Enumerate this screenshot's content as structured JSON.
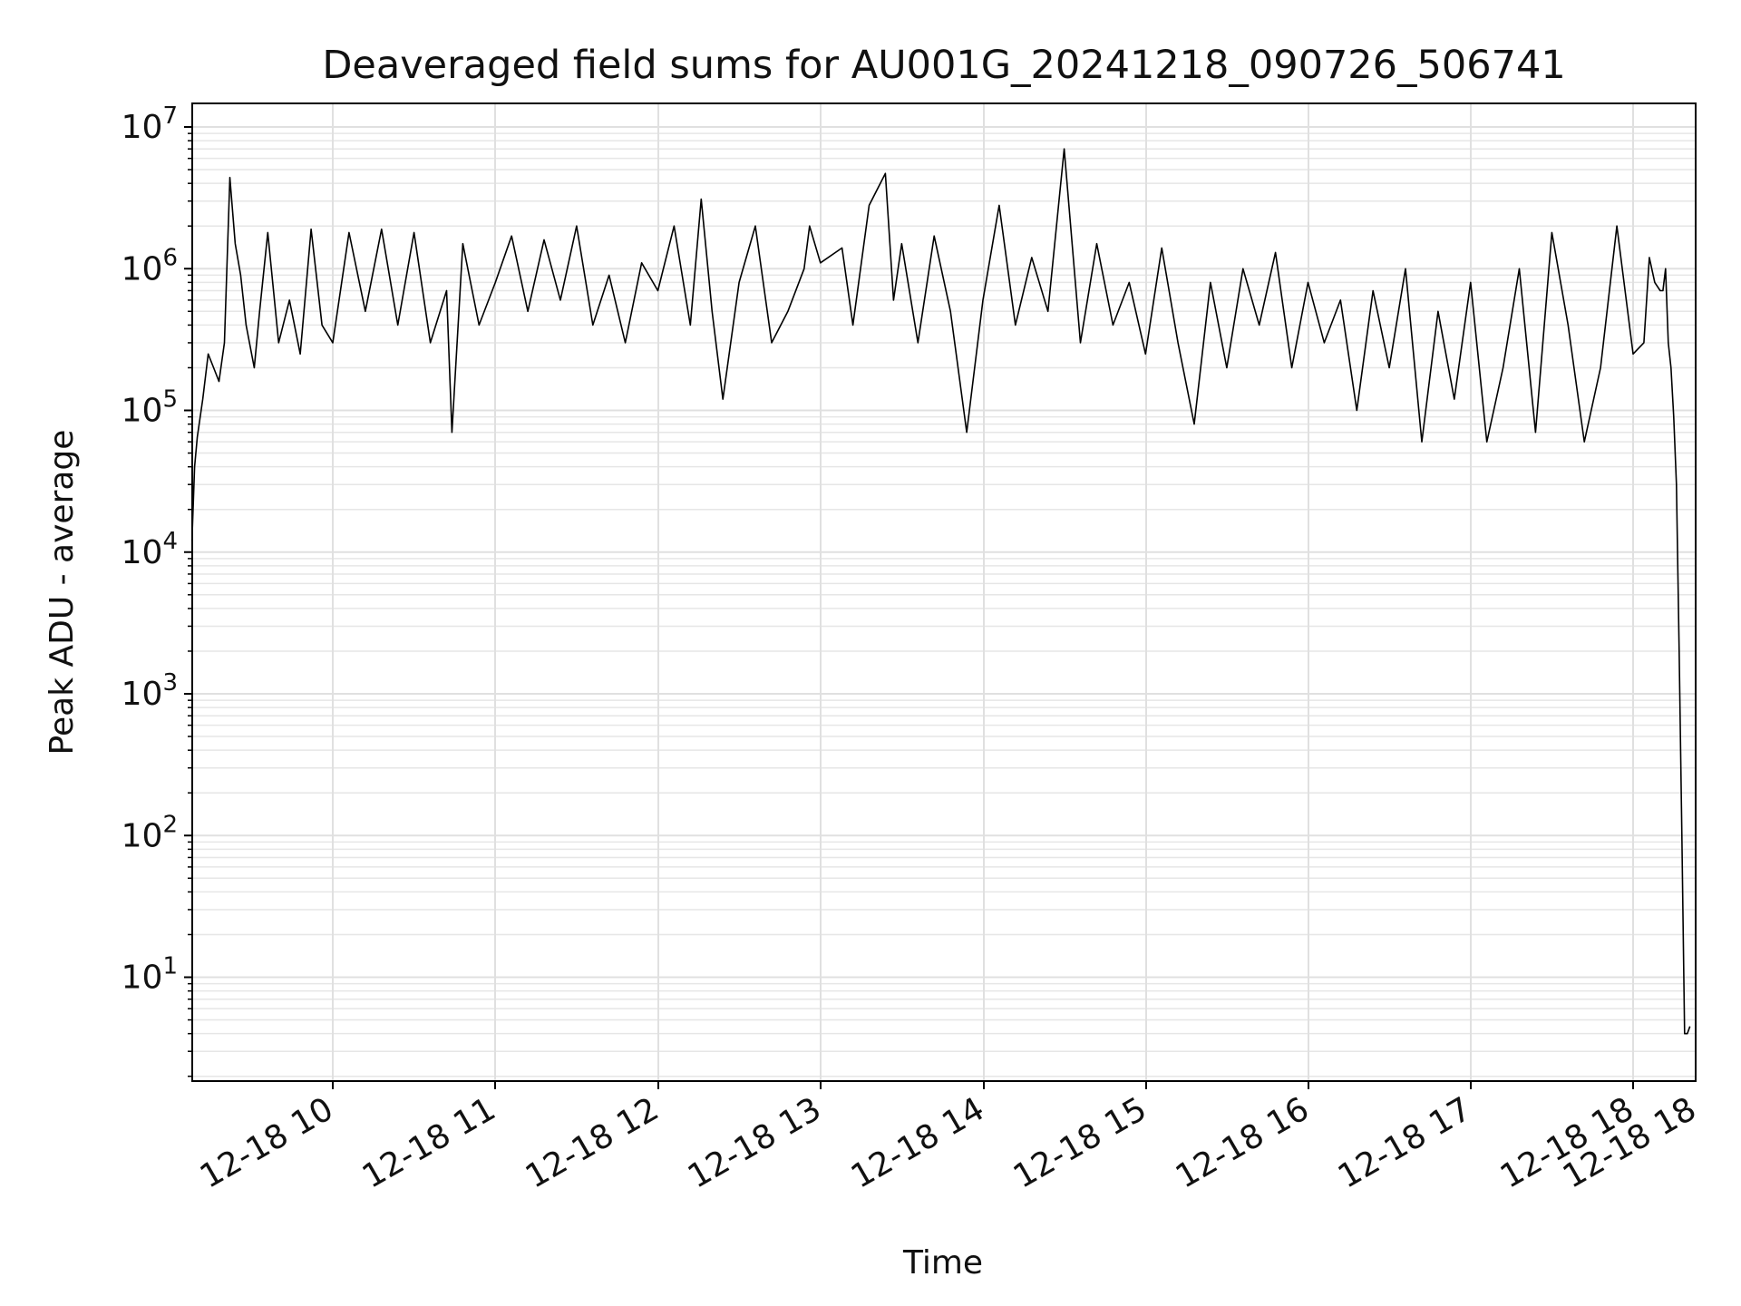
{
  "chart_data": {
    "type": "line",
    "title": "Deaveraged field sums for AU001G_20241218_090726_506741",
    "xlabel": "Time",
    "ylabel": "Peak ADU - average",
    "yscale": "log",
    "grid": true,
    "xlim": [
      "12-18 09:08",
      "12-18 18:21"
    ],
    "ylim": [
      1.8,
      14000000
    ],
    "x_ticks": [
      "12-18 10",
      "12-18 11",
      "12-18 12",
      "12-18 13",
      "12-18 14",
      "12-18 15",
      "12-18 16",
      "12-18 17",
      "12-18 18",
      "12-18 18"
    ],
    "y_ticks": [
      {
        "value": 10,
        "base": "10",
        "exp": "1"
      },
      {
        "value": 100,
        "base": "10",
        "exp": "2"
      },
      {
        "value": 1000,
        "base": "10",
        "exp": "3"
      },
      {
        "value": 10000,
        "base": "10",
        "exp": "4"
      },
      {
        "value": 100000,
        "base": "10",
        "exp": "5"
      },
      {
        "value": 1000000,
        "base": "10",
        "exp": "6"
      },
      {
        "value": 10000000,
        "base": "10",
        "exp": "7"
      }
    ],
    "series": [
      {
        "color": "#000000",
        "x": [
          "12-18 09:08",
          "12-18 09:09",
          "12-18 09:10",
          "12-18 09:12",
          "12-18 09:14",
          "12-18 09:16",
          "12-18 09:18",
          "12-18 09:20",
          "12-18 09:22",
          "12-18 09:24",
          "12-18 09:26",
          "12-18 09:28",
          "12-18 09:31",
          "12-18 09:33",
          "12-18 09:36",
          "12-18 09:40",
          "12-18 09:44",
          "12-18 09:48",
          "12-18 09:52",
          "12-18 09:56",
          "12-18 10:00",
          "12-18 10:06",
          "12-18 10:12",
          "12-18 10:18",
          "12-18 10:24",
          "12-18 10:30",
          "12-18 10:36",
          "12-18 10:42",
          "12-18 10:44",
          "12-18 10:48",
          "12-18 10:54",
          "12-18 11:00",
          "12-18 11:06",
          "12-18 11:12",
          "12-18 11:18",
          "12-18 11:24",
          "12-18 11:30",
          "12-18 11:36",
          "12-18 11:42",
          "12-18 11:48",
          "12-18 11:54",
          "12-18 12:00",
          "12-18 12:06",
          "12-18 12:12",
          "12-18 12:16",
          "12-18 12:20",
          "12-18 12:24",
          "12-18 12:30",
          "12-18 12:36",
          "12-18 12:42",
          "12-18 12:48",
          "12-18 12:54",
          "12-18 12:56",
          "12-18 13:00",
          "12-18 13:08",
          "12-18 13:12",
          "12-18 13:18",
          "12-18 13:24",
          "12-18 13:27",
          "12-18 13:30",
          "12-18 13:36",
          "12-18 13:42",
          "12-18 13:48",
          "12-18 13:54",
          "12-18 14:00",
          "12-18 14:06",
          "12-18 14:12",
          "12-18 14:18",
          "12-18 14:24",
          "12-18 14:30",
          "12-18 14:36",
          "12-18 14:42",
          "12-18 14:48",
          "12-18 14:54",
          "12-18 15:00",
          "12-18 15:06",
          "12-18 15:12",
          "12-18 15:18",
          "12-18 15:24",
          "12-18 15:30",
          "12-18 15:36",
          "12-18 15:42",
          "12-18 15:48",
          "12-18 15:54",
          "12-18 16:00",
          "12-18 16:06",
          "12-18 16:12",
          "12-18 16:18",
          "12-18 16:24",
          "12-18 16:30",
          "12-18 16:36",
          "12-18 16:42",
          "12-18 16:48",
          "12-18 16:54",
          "12-18 17:00",
          "12-18 17:06",
          "12-18 17:12",
          "12-18 17:18",
          "12-18 17:24",
          "12-18 17:30",
          "12-18 17:36",
          "12-18 17:42",
          "12-18 17:48",
          "12-18 17:54",
          "12-18 18:00",
          "12-18 18:04",
          "12-18 18:06",
          "12-18 18:08",
          "12-18 18:10",
          "12-18 18:11",
          "12-18 18:12",
          "12-18 18:13",
          "12-18 18:14",
          "12-18 18:15",
          "12-18 18:16",
          "12-18 18:17",
          "12-18 18:18",
          "12-18 18:19",
          "12-18 18:20",
          "12-18 18:21"
        ],
        "values": [
          12000,
          40000,
          65000,
          120000,
          250000,
          200000,
          160000,
          300000,
          4400000,
          1500000,
          900000,
          400000,
          200000,
          500000,
          1800000,
          300000,
          600000,
          250000,
          1900000,
          400000,
          300000,
          1800000,
          500000,
          1900000,
          400000,
          1800000,
          300000,
          700000,
          70000,
          1500000,
          400000,
          800000,
          1700000,
          500000,
          1600000,
          600000,
          2000000,
          400000,
          900000,
          300000,
          1100000,
          700000,
          2000000,
          400000,
          3100000,
          500000,
          120000,
          800000,
          2000000,
          300000,
          500000,
          1000000,
          2000000,
          1100000,
          1400000,
          400000,
          2800000,
          4700000,
          600000,
          1500000,
          300000,
          1700000,
          500000,
          70000,
          600000,
          2800000,
          400000,
          1200000,
          500000,
          7000000,
          300000,
          1500000,
          400000,
          800000,
          250000,
          1400000,
          300000,
          80000,
          800000,
          200000,
          1000000,
          400000,
          1300000,
          200000,
          800000,
          300000,
          600000,
          100000,
          700000,
          200000,
          1000000,
          60000,
          500000,
          120000,
          800000,
          60000,
          200000,
          1000000,
          70000,
          1800000,
          400000,
          60000,
          200000,
          2000000,
          250000,
          300000,
          1200000,
          800000,
          700000,
          700000,
          1000000,
          300000,
          200000,
          90000,
          30000,
          2000,
          100,
          4,
          4,
          4.5
        ]
      }
    ]
  }
}
